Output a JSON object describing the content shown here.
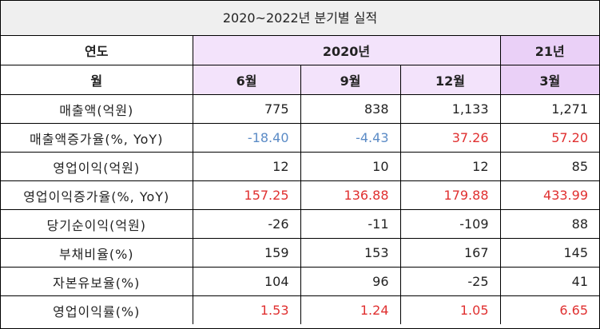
{
  "title": "2020~2022년 분기별 실적",
  "header": {
    "year_label": "연도",
    "years": [
      "2020년",
      "21년"
    ],
    "month_label": "월",
    "months": [
      "6월",
      "9월",
      "12월",
      "3월"
    ]
  },
  "rows": [
    {
      "label": "매출액(억원)",
      "values": [
        "775",
        "838",
        "1,133",
        "1,271"
      ],
      "colors": [
        "#222",
        "#222",
        "#222",
        "#222"
      ]
    },
    {
      "label": "매출액증가율(%, YoY)",
      "values": [
        "-18.40",
        "-4.43",
        "37.26",
        "57.20"
      ],
      "colors": [
        "#5b8bc6",
        "#5b8bc6",
        "#e03030",
        "#e03030"
      ]
    },
    {
      "label": "영업이익(억원)",
      "values": [
        "12",
        "10",
        "12",
        "85"
      ],
      "colors": [
        "#222",
        "#222",
        "#222",
        "#222"
      ]
    },
    {
      "label": "영업이익증가율(%, YoY)",
      "values": [
        "157.25",
        "136.88",
        "179.88",
        "433.99"
      ],
      "colors": [
        "#e03030",
        "#e03030",
        "#e03030",
        "#e03030"
      ]
    },
    {
      "label": "당기순이익(억원)",
      "values": [
        "-26",
        "-11",
        "-109",
        "88"
      ],
      "colors": [
        "#222",
        "#222",
        "#222",
        "#222"
      ]
    },
    {
      "label": "부채비율(%)",
      "values": [
        "159",
        "153",
        "167",
        "145"
      ],
      "colors": [
        "#222",
        "#222",
        "#222",
        "#222"
      ]
    },
    {
      "label": "자본유보율(%)",
      "values": [
        "104",
        "96",
        "-25",
        "41"
      ],
      "colors": [
        "#222",
        "#222",
        "#222",
        "#222"
      ]
    },
    {
      "label": "영업이익률(%)",
      "values": [
        "1.53",
        "1.24",
        "1.05",
        "6.65"
      ],
      "colors": [
        "#e03030",
        "#e03030",
        "#e03030",
        "#e03030"
      ]
    }
  ]
}
